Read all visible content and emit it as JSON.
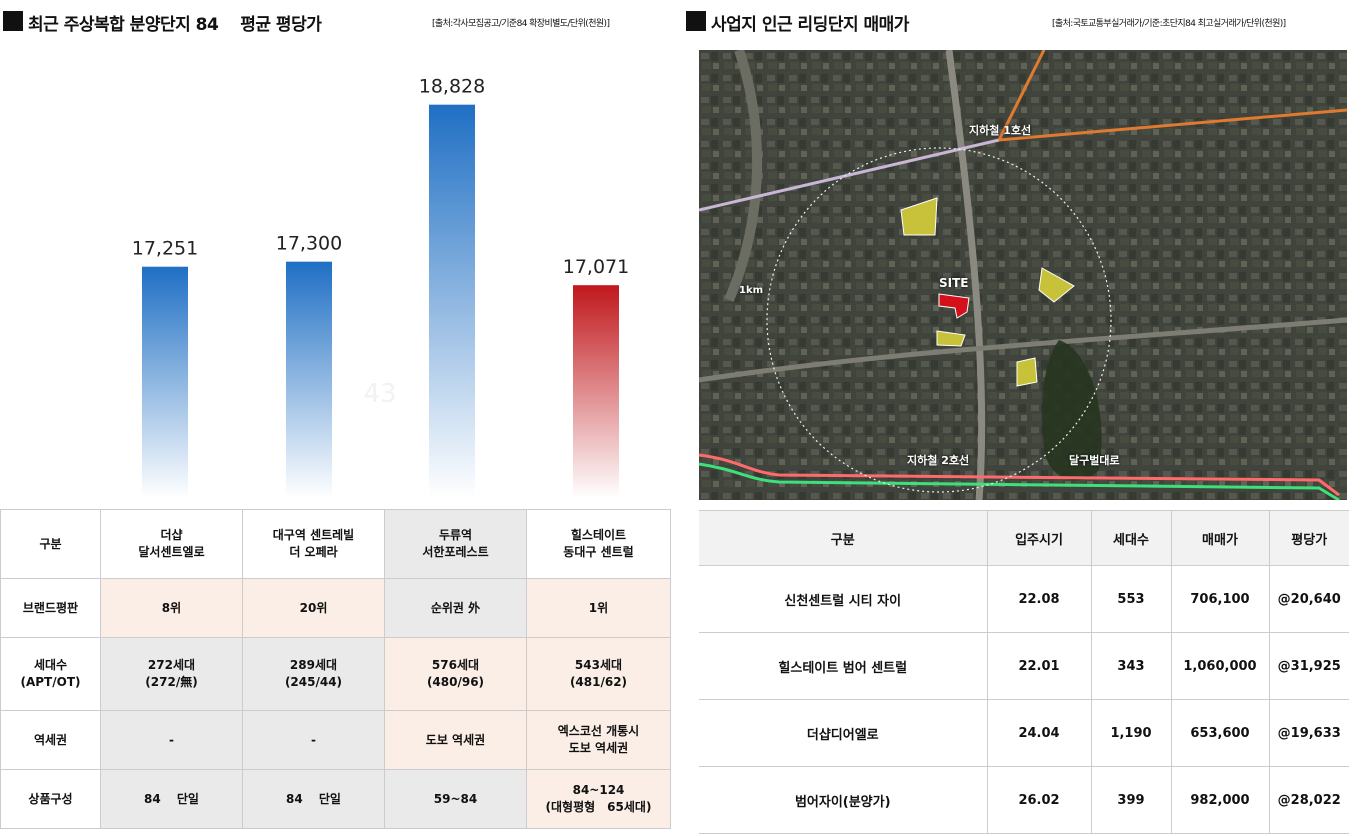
{
  "left": {
    "title": "최근 주상복합 분양단지 84　 평균 평당가",
    "source": "[출처:각사모집공고/기준84 확장비별도/단위(천원)]"
  },
  "right": {
    "title": "사업지 인근 리딩단지 매매가",
    "source": "[출처:국토교통부실거래가/기준:초단지84 최고실거래가/단위(천원)]"
  },
  "chart_data": {
    "type": "bar",
    "categories": [
      "더샵 달서센트엘로",
      "대구역 센트레빌 더 오페라",
      "두류역 서한포레스트",
      "힐스테이트 동대구 센트럴"
    ],
    "values": [
      17251,
      17300,
      18828,
      17071
    ],
    "value_labels": [
      "17,251",
      "17,300",
      "18,828",
      "17,071"
    ],
    "ghost_label": "43",
    "bar_colors": [
      "#1f6fc4",
      "#1f6fc4",
      "#1f6fc4",
      "#c0181c"
    ],
    "grid": false
  },
  "compare_table": {
    "header": [
      "구분",
      "더샵\n달서센트엘로",
      "대구역 센트레빌\n더 오페라",
      "두류역\n서한포레스트",
      "힐스테이트\n동대구 센트럴"
    ],
    "rows": [
      {
        "label": "브랜드평판",
        "cells": [
          "8위",
          "20위",
          "순위권 外",
          "1위"
        ],
        "colors": [
          "peach",
          "peach",
          "gray",
          "peach"
        ]
      },
      {
        "label": "세대수\n(APT/OT)",
        "cells": [
          "272세대\n(272/無)",
          "289세대\n(245/44)",
          "576세대\n(480/96)",
          "543세대\n(481/62)"
        ],
        "colors": [
          "gray",
          "gray",
          "peach",
          "peach"
        ]
      },
      {
        "label": "역세권",
        "cells": [
          "-",
          "-",
          "도보 역세권",
          "엑스코선 개통시\n도보 역세권"
        ],
        "colors": [
          "gray",
          "gray",
          "peach",
          "peach"
        ]
      },
      {
        "label": "상품구성",
        "cells": [
          "84　 단일",
          "84　 단일",
          "59~84",
          "84~124\n(대형평형　65세대)"
        ],
        "colors": [
          "gray",
          "gray",
          "gray",
          "peach"
        ]
      }
    ]
  },
  "map": {
    "labels": {
      "line1": "지하철 1호선",
      "line2": "지하철 2호선",
      "road": "달구벌대로",
      "site": "SITE",
      "radius": "1km"
    }
  },
  "price_table": {
    "header": [
      "구분",
      "입주시기",
      "세대수",
      "매매가",
      "평당가"
    ],
    "rows": [
      [
        "신천센트럴 시티 자이",
        "22.08",
        "553",
        "706,100",
        "@20,640"
      ],
      [
        "힐스테이트 범어 센트럴",
        "22.01",
        "343",
        "1,060,000",
        "@31,925"
      ],
      [
        "더샵디어엘로",
        "24.04",
        "1,190",
        "653,600",
        "@19,633"
      ],
      [
        "범어자이(분양가)",
        "26.02",
        "399",
        "982,000",
        "@28,022"
      ]
    ]
  }
}
